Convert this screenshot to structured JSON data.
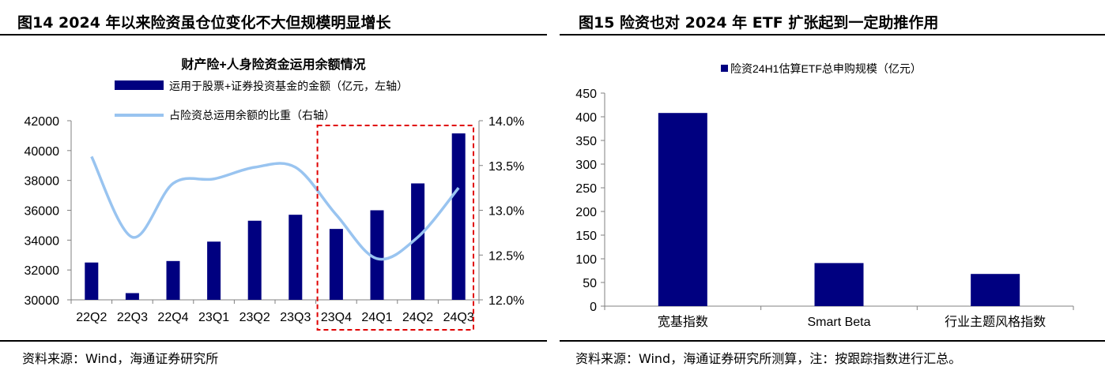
{
  "left": {
    "fig_title": "图14 2024 年以来险资虽仓位变化不大但规模明显增长",
    "source": "资料来源：Wind，海通证券研究所"
  },
  "right": {
    "fig_title": "图15 险资也对 2024 年 ETF 扩张起到一定助推作用",
    "source": "资料来源：Wind，海通证券研究所测算，注：按跟踪指数进行汇总。"
  },
  "chart_data": [
    {
      "type": "bar",
      "title": "财产险+人身险资金运用余额情况",
      "categories": [
        "22Q2",
        "22Q3",
        "22Q4",
        "23Q1",
        "23Q2",
        "23Q3",
        "23Q4",
        "24Q1",
        "24Q2",
        "24Q3"
      ],
      "series": [
        {
          "name": "运用于股票+证券投资基金的金额（亿元，左轴）",
          "type": "bar",
          "axis": "left",
          "values": [
            32500,
            30450,
            32600,
            33900,
            35300,
            35700,
            34750,
            36000,
            37800,
            41150
          ]
        },
        {
          "name": "占险资总运用余额的比重（右轴）",
          "type": "line",
          "axis": "right",
          "values": [
            13.6,
            12.7,
            13.3,
            13.35,
            13.48,
            13.48,
            12.95,
            12.46,
            12.7,
            13.25
          ]
        }
      ],
      "ylim_left": [
        30000,
        42000
      ],
      "yticks_left": [
        "30000",
        "32000",
        "34000",
        "36000",
        "38000",
        "40000",
        "42000"
      ],
      "ylim_right": [
        12.0,
        14.0
      ],
      "yticks_right": [
        "12.0%",
        "12.5%",
        "13.0%",
        "13.5%",
        "14.0%"
      ],
      "highlight_range": [
        "23Q4",
        "24Q3"
      ],
      "colors": {
        "bar": "#000080",
        "line": "#99c4f0",
        "highlight": "#e00000"
      }
    },
    {
      "type": "bar",
      "title": "险资24H1估算ETF总申购规模（亿元）",
      "categories": [
        "宽基指数",
        "Smart Beta",
        "行业主题风格指数"
      ],
      "values": [
        408,
        91,
        68
      ],
      "ylim": [
        0,
        450
      ],
      "yticks": [
        "0",
        "50",
        "100",
        "150",
        "200",
        "250",
        "300",
        "350",
        "400",
        "450"
      ],
      "colors": {
        "bar": "#000080"
      }
    }
  ]
}
